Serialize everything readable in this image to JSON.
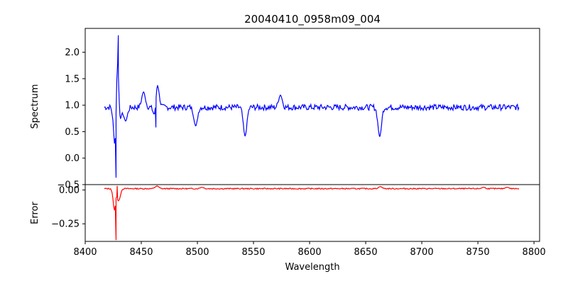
{
  "chart_data": [
    {
      "type": "line",
      "title": "20040410_0958m09_004",
      "ylabel": "Spectrum",
      "xlim": [
        8400,
        8805
      ],
      "ylim": [
        -0.5,
        2.45
      ],
      "x_ticks": [
        8400,
        8450,
        8500,
        8550,
        8600,
        8650,
        8700,
        8750,
        8800
      ],
      "y_ticks": [
        -0.5,
        0.0,
        0.5,
        1.0,
        1.5,
        2.0
      ],
      "y_tick_labels": [
        "−0.5",
        "0.0",
        "0.5",
        "1.0",
        "1.5",
        "2.0"
      ],
      "series": [
        {
          "color": "#0000ff",
          "baseline": 0.96,
          "x_range": [
            8417,
            8787
          ],
          "features": [
            {
              "x": 8427.5,
              "y": -0.37
            },
            {
              "x": 8429.5,
              "y": 2.32
            },
            {
              "x": 8431.5,
              "y": 0.75
            },
            {
              "x": 8436,
              "y": 0.7
            },
            {
              "x": 8452,
              "y": 1.25
            },
            {
              "x": 8463,
              "y": 0.58
            },
            {
              "x": 8464.5,
              "y": 1.37
            },
            {
              "x": 8498.5,
              "y": 0.61
            },
            {
              "x": 8542.5,
              "y": 0.42
            },
            {
              "x": 8574,
              "y": 1.19
            },
            {
              "x": 8662.5,
              "y": 0.41
            }
          ]
        }
      ],
      "grid": false
    },
    {
      "type": "line",
      "xlabel": "Wavelength",
      "ylabel": "Error",
      "xlim": [
        8400,
        8805
      ],
      "ylim": [
        -0.38,
        0.04
      ],
      "x_ticks": [
        8400,
        8450,
        8500,
        8550,
        8600,
        8650,
        8700,
        8750,
        8800
      ],
      "x_tick_labels": [
        "8400",
        "8450",
        "8500",
        "8550",
        "8600",
        "8650",
        "8700",
        "8750",
        "8800"
      ],
      "y_ticks": [
        0.0,
        -0.25
      ],
      "y_tick_labels": [
        "0.00",
        "−0.25"
      ],
      "series": [
        {
          "color": "#ff0000",
          "baseline": 0.01,
          "x_range": [
            8417,
            8787
          ],
          "features": [
            {
              "x": 8427.5,
              "y": -0.37
            },
            {
              "x": 8428.5,
              "y": 0.03
            },
            {
              "x": 8429.5,
              "y": -0.08
            },
            {
              "x": 8464,
              "y": 0.03
            },
            {
              "x": 8504,
              "y": 0.02
            },
            {
              "x": 8663,
              "y": 0.025
            },
            {
              "x": 8755,
              "y": 0.02
            },
            {
              "x": 8776,
              "y": 0.02
            }
          ]
        }
      ],
      "grid": false
    }
  ]
}
